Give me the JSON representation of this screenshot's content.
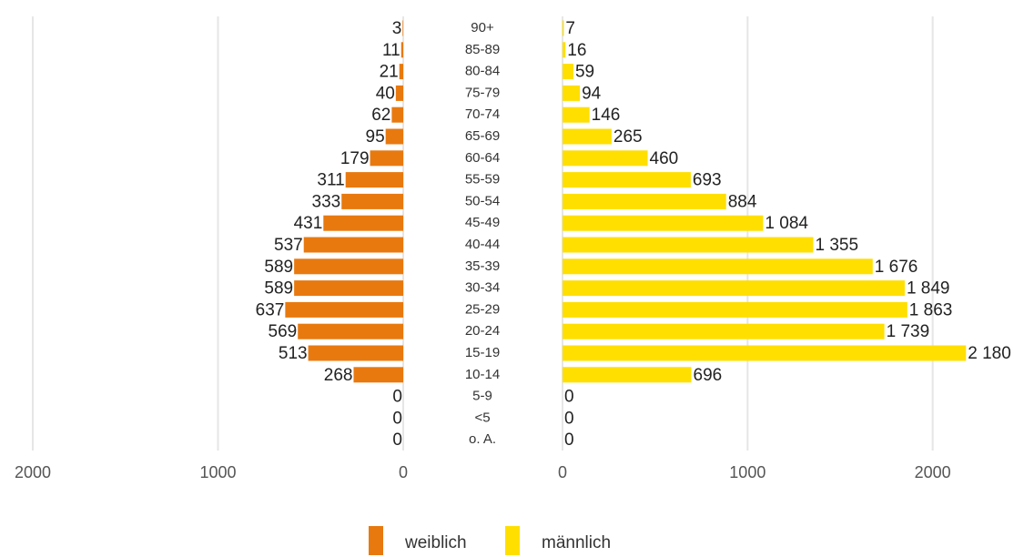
{
  "chart_data": {
    "type": "pyramid",
    "categories": [
      "90+",
      "85-89",
      "80-84",
      "75-79",
      "70-74",
      "65-69",
      "60-64",
      "55-59",
      "50-54",
      "45-49",
      "40-44",
      "35-39",
      "30-34",
      "25-29",
      "20-24",
      "15-19",
      "10-14",
      "5-9",
      "<5",
      "o. A."
    ],
    "series": [
      {
        "name": "weiblich",
        "color": "#e8790f",
        "side": "left",
        "values": [
          3,
          11,
          21,
          40,
          62,
          95,
          179,
          311,
          333,
          431,
          537,
          589,
          589,
          637,
          569,
          513,
          268,
          0,
          0,
          0
        ],
        "xlim": [
          0,
          2000
        ],
        "xticks": [
          0,
          1000,
          2000
        ]
      },
      {
        "name": "männlich",
        "color": "#ffdf00",
        "side": "right",
        "values": [
          7,
          16,
          59,
          94,
          146,
          265,
          460,
          693,
          884,
          1084,
          1355,
          1676,
          1849,
          1863,
          1739,
          2180,
          696,
          0,
          0,
          0
        ],
        "value_labels": [
          "7",
          "16",
          "59",
          "94",
          "146",
          "265",
          "460",
          "693",
          "884",
          "1 084",
          "1 355",
          "1 676",
          "1 849",
          "1 863",
          "1 739",
          "2 180",
          "696",
          "0",
          "0",
          "0"
        ],
        "xlim": [
          0,
          2400
        ],
        "xticks": [
          0,
          1000,
          2000
        ]
      }
    ],
    "grid": true,
    "legend": "bottom"
  }
}
